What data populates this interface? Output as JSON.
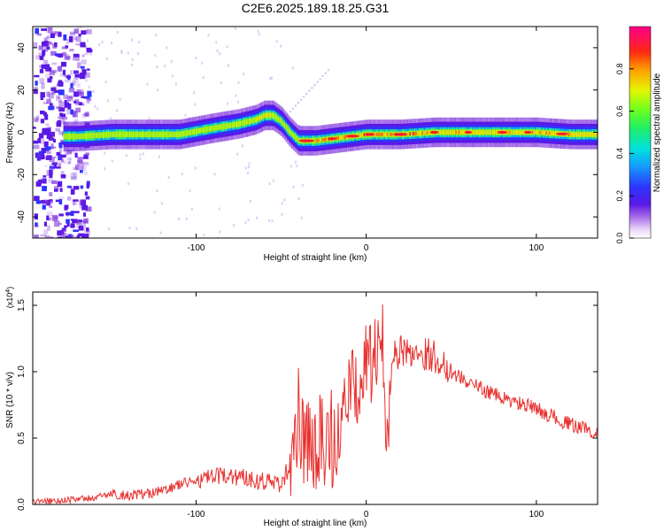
{
  "title": "C2E6.2025.189.18.25.G31",
  "colors": {
    "snr_line": "#e8312f",
    "axis": "#000000"
  },
  "chart_data": [
    {
      "type": "heatmap",
      "xlabel": "Height of straight line (km)",
      "ylabel": "Frequency (Hz)",
      "xlim": [
        -196,
        136
      ],
      "ylim": [
        -50,
        50
      ],
      "x_ticks": [
        -100,
        0,
        100
      ],
      "y_ticks": [
        -40,
        -20,
        0,
        20,
        40
      ],
      "colorbar": {
        "label": "Normalized spectral amplitude",
        "range": [
          0,
          1
        ],
        "ticks": [
          "0.0",
          "0.2",
          "0.4",
          "0.6",
          "0.8"
        ],
        "colormap": "rainbow (violet to red to magenta)"
      },
      "ridge": {
        "x": [
          -170,
          -150,
          -130,
          -110,
          -90,
          -75,
          -65,
          -60,
          -55,
          -50,
          -45,
          -40,
          -35,
          -30,
          -20,
          -10,
          0,
          10,
          20,
          40,
          60,
          80,
          100,
          120,
          136
        ],
        "y": [
          -2,
          -1,
          -1,
          -1,
          2,
          4,
          6,
          8,
          8,
          5,
          0,
          -4,
          -4,
          -4,
          -3,
          -2,
          -1,
          -1,
          -1,
          0,
          0,
          0,
          0,
          -1,
          -1
        ]
      }
    },
    {
      "type": "line",
      "xlabel": "Height of straight line (km)",
      "ylabel": "SNR (10 * v/v)",
      "y_scale_label": "(x10^4)",
      "xlim": [
        -196,
        136
      ],
      "ylim": [
        0,
        1.6
      ],
      "x_ticks": [
        -100,
        0,
        100
      ],
      "y_ticks": [
        "0.0",
        "0.5",
        "1.0",
        "1.5"
      ],
      "series": [
        {
          "x": [
            -196,
            -180,
            -160,
            -150,
            -140,
            -130,
            -120,
            -110,
            -100,
            -90,
            -80,
            -70,
            -60,
            -50,
            -45,
            -42,
            -40,
            -38,
            -35,
            -30,
            -25,
            -20,
            -15,
            -10,
            -5,
            0,
            5,
            10,
            12,
            15,
            20,
            30,
            40,
            50,
            60,
            70,
            80,
            90,
            100,
            110,
            120,
            130,
            136
          ],
          "y": [
            0.02,
            0.03,
            0.05,
            0.08,
            0.07,
            0.08,
            0.1,
            0.15,
            0.18,
            0.2,
            0.22,
            0.2,
            0.18,
            0.15,
            0.3,
            0.6,
            0.9,
            0.7,
            0.65,
            0.7,
            0.75,
            0.75,
            0.75,
            0.82,
            0.9,
            1.05,
            1.1,
            1.2,
            0.5,
            1.1,
            1.15,
            1.15,
            1.12,
            1.0,
            0.92,
            0.86,
            0.8,
            0.76,
            0.72,
            0.66,
            0.6,
            0.57,
            0.53
          ]
        }
      ]
    }
  ]
}
